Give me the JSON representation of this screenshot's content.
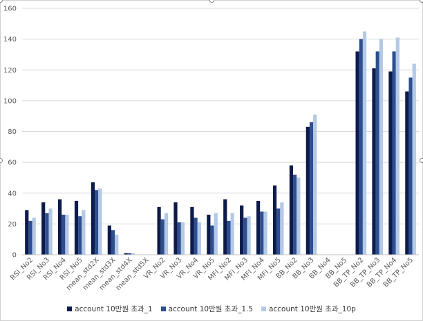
{
  "chart_data": {
    "type": "bar",
    "title": "",
    "xlabel": "",
    "ylabel": "",
    "ylim": [
      0,
      160
    ],
    "yticks": [
      0,
      20,
      40,
      60,
      80,
      100,
      120,
      140,
      160
    ],
    "grid": true,
    "legend_position": "bottom",
    "categories": [
      "RSI_No2",
      "RSI_No3",
      "RSI_No4",
      "RSI_No5",
      "mean_std2X",
      "mean_std3X",
      "mean_std4X",
      "mean_std5X",
      "VR_No2",
      "VR_No3",
      "VR_No4",
      "VR_No5",
      "MFI_No2",
      "MFI_No3",
      "MFI_No4",
      "MFI_No5",
      "BB_No2",
      "BB_No3",
      "BB_No4",
      "BB_No5",
      "BB_TP_No2",
      "BB_TP_No3",
      "BB_TP_No4",
      "BB_TP_No5"
    ],
    "series": [
      {
        "name": "account 10만원 초과_1",
        "color": "#0d1b4c",
        "values": [
          29,
          34,
          36,
          35,
          47,
          19,
          1,
          0,
          31,
          34,
          31,
          26,
          36,
          32,
          35,
          45,
          58,
          83,
          0,
          0,
          132,
          121,
          119,
          106
        ]
      },
      {
        "name": "account 10만원 초과_1.5",
        "color": "#2e4f8f",
        "values": [
          22,
          27,
          26,
          25,
          42,
          16,
          1,
          0,
          23,
          21,
          24,
          19,
          22,
          24,
          28,
          30,
          52,
          86,
          0,
          0,
          140,
          132,
          132,
          115
        ]
      },
      {
        "name": "account 10만원 초과_10p",
        "color": "#b4c9e6",
        "values": [
          24,
          30,
          26,
          29,
          43,
          13,
          1,
          0,
          27,
          21,
          21,
          27,
          27,
          25,
          28,
          34,
          50,
          91,
          0,
          0,
          145,
          140,
          141,
          124
        ]
      }
    ]
  }
}
